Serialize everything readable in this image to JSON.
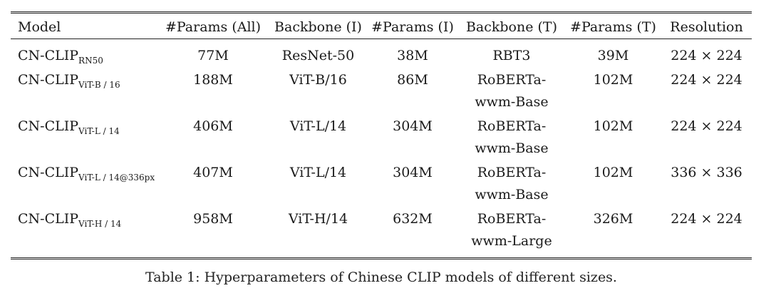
{
  "table": {
    "headers": [
      "Model",
      "#Params (All)",
      "Backbone (I)",
      "#Params (I)",
      "Backbone (T)",
      "#Params (T)",
      "Resolution"
    ],
    "rows": [
      {
        "model": "CN-CLIP",
        "model_sub": "RN50",
        "params_all": "77M",
        "backbone_i": "ResNet-50",
        "params_i": "38M",
        "backbone_t": [
          "RBT3"
        ],
        "params_t": "39M",
        "resolution": "224 × 224"
      },
      {
        "model": "CN-CLIP",
        "model_sub": "ViT-B / 16",
        "params_all": "188M",
        "backbone_i": "ViT-B/16",
        "params_i": "86M",
        "backbone_t": [
          "RoBERTa-",
          "wwm-Base"
        ],
        "params_t": "102M",
        "resolution": "224 × 224"
      },
      {
        "model": "CN-CLIP",
        "model_sub": "ViT-L / 14",
        "params_all": "406M",
        "backbone_i": "ViT-L/14",
        "params_i": "304M",
        "backbone_t": [
          "RoBERTa-",
          "wwm-Base"
        ],
        "params_t": "102M",
        "resolution": "224 × 224"
      },
      {
        "model": "CN-CLIP",
        "model_sub": "ViT-L / 14@336px",
        "params_all": "407M",
        "backbone_i": "ViT-L/14",
        "params_i": "304M",
        "backbone_t": [
          "RoBERTa-",
          "wwm-Base"
        ],
        "params_t": "102M",
        "resolution": "336 × 336"
      },
      {
        "model": "CN-CLIP",
        "model_sub": "ViT-H / 14",
        "params_all": "958M",
        "backbone_i": "ViT-H/14",
        "params_i": "632M",
        "backbone_t": [
          "RoBERTa-",
          "wwm-Large"
        ],
        "params_t": "326M",
        "resolution": "224 × 224"
      }
    ]
  },
  "caption": "Table 1: Hyperparameters of Chinese CLIP models of different sizes."
}
